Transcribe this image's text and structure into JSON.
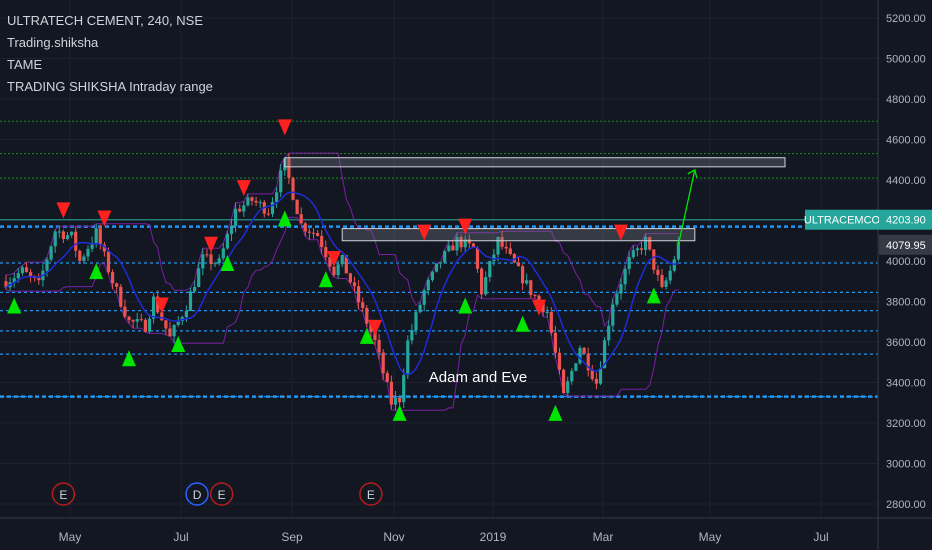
{
  "legend": {
    "title": "ULTRATECH CEMENT, 240, NSE",
    "indicators": [
      "Trading.shiksha",
      "TAME",
      "TRADING SHIKSHA Intraday range"
    ]
  },
  "annotation": "Adam and Eve",
  "colors": {
    "background": "#131722",
    "candle_up": "#26a69a",
    "candle_down": "#ef5350",
    "band": "#7b1fa2",
    "moving_average": "#1e2cd6",
    "support_line": "#2196f3",
    "resistance_line": "#1b8c1b",
    "buy_signal": "#00e600",
    "sell_signal": "#ff2020",
    "price_tag": "#26a69a",
    "current_tag": "#363a45"
  },
  "chart_data": {
    "type": "candlestick",
    "symbol": "ULTRATECH CEMENT",
    "timeframe": "240",
    "exchange": "NSE",
    "y_range": [
      2780,
      5280
    ],
    "x_labels": [
      "May",
      "Jul",
      "Sep",
      "Nov",
      "2019",
      "Mar",
      "May",
      "Jul"
    ],
    "y_ticks": [
      2800,
      3000,
      3200,
      3400,
      3600,
      3800,
      4000,
      4200,
      4400,
      4600,
      4800,
      5000,
      5200
    ],
    "price_path": [
      {
        "t": 0,
        "p": 3900
      },
      {
        "t": 2,
        "p": 3950
      },
      {
        "t": 4,
        "p": 3880
      },
      {
        "t": 6,
        "p": 4150
      },
      {
        "t": 8,
        "p": 4120
      },
      {
        "t": 9,
        "p": 4000
      },
      {
        "t": 11,
        "p": 4140
      },
      {
        "t": 13,
        "p": 3900
      },
      {
        "t": 15,
        "p": 3700
      },
      {
        "t": 17,
        "p": 3680
      },
      {
        "t": 18,
        "p": 3810
      },
      {
        "t": 20,
        "p": 3620
      },
      {
        "t": 22,
        "p": 3780
      },
      {
        "t": 24,
        "p": 4010
      },
      {
        "t": 26,
        "p": 3990
      },
      {
        "t": 28,
        "p": 4250
      },
      {
        "t": 30,
        "p": 4300
      },
      {
        "t": 32,
        "p": 4250
      },
      {
        "t": 34,
        "p": 4480
      },
      {
        "t": 36,
        "p": 4180
      },
      {
        "t": 38,
        "p": 4130
      },
      {
        "t": 40,
        "p": 3950
      },
      {
        "t": 41,
        "p": 4000
      },
      {
        "t": 43,
        "p": 3800
      },
      {
        "t": 45,
        "p": 3600
      },
      {
        "t": 47,
        "p": 3300
      },
      {
        "t": 48,
        "p": 3320
      },
      {
        "t": 49,
        "p": 3600
      },
      {
        "t": 51,
        "p": 3850
      },
      {
        "t": 53,
        "p": 4000
      },
      {
        "t": 55,
        "p": 4100
      },
      {
        "t": 57,
        "p": 4060
      },
      {
        "t": 58,
        "p": 3850
      },
      {
        "t": 60,
        "p": 4100
      },
      {
        "t": 62,
        "p": 3980
      },
      {
        "t": 64,
        "p": 3850
      },
      {
        "t": 66,
        "p": 3750
      },
      {
        "t": 68,
        "p": 3330
      },
      {
        "t": 70,
        "p": 3580
      },
      {
        "t": 72,
        "p": 3400
      },
      {
        "t": 74,
        "p": 3800
      },
      {
        "t": 76,
        "p": 4000
      },
      {
        "t": 78,
        "p": 4100
      },
      {
        "t": 80,
        "p": 3850
      },
      {
        "t": 81,
        "p": 3950
      },
      {
        "t": 82,
        "p": 4080
      }
    ],
    "current_price": 4079.95,
    "ticker_tag": {
      "label": "ULTRACEMCO",
      "price": 4203.9
    },
    "support_levels": [
      3990,
      3845,
      3755,
      3655,
      3540,
      3330
    ],
    "resistance_levels": [
      4690,
      4530,
      4410
    ],
    "zones": [
      {
        "t_start": 34,
        "t_end": 95,
        "low": 4465,
        "high": 4510
      },
      {
        "t_start": 41,
        "t_end": 84,
        "low": 4100,
        "high": 4160
      }
    ],
    "sell_signals": [
      {
        "t": 7,
        "p": 4250
      },
      {
        "t": 12,
        "p": 4210
      },
      {
        "t": 19,
        "p": 3780
      },
      {
        "t": 25,
        "p": 4080
      },
      {
        "t": 29,
        "p": 4360
      },
      {
        "t": 34,
        "p": 4660
      },
      {
        "t": 40,
        "p": 4010
      },
      {
        "t": 45,
        "p": 3670
      },
      {
        "t": 51,
        "p": 4140
      },
      {
        "t": 56,
        "p": 4170
      },
      {
        "t": 65,
        "p": 3770
      },
      {
        "t": 75,
        "p": 4140
      }
    ],
    "buy_signals": [
      {
        "t": 1,
        "p": 3780
      },
      {
        "t": 11,
        "p": 3950
      },
      {
        "t": 15,
        "p": 3520
      },
      {
        "t": 21,
        "p": 3590
      },
      {
        "t": 27,
        "p": 3990
      },
      {
        "t": 34,
        "p": 4210
      },
      {
        "t": 39,
        "p": 3910
      },
      {
        "t": 44,
        "p": 3630
      },
      {
        "t": 48,
        "p": 3250
      },
      {
        "t": 56,
        "p": 3780
      },
      {
        "t": 63,
        "p": 3690
      },
      {
        "t": 67,
        "p": 3250
      },
      {
        "t": 79,
        "p": 3830
      }
    ],
    "projection": {
      "from": {
        "t": 82,
        "p": 4080
      },
      "to": {
        "t": 84,
        "p": 4450
      }
    },
    "events": [
      {
        "t": 7,
        "label": "E"
      },
      {
        "t": 23.3,
        "label": "D"
      },
      {
        "t": 26.3,
        "label": "E"
      },
      {
        "t": 44.5,
        "label": "E"
      }
    ]
  }
}
